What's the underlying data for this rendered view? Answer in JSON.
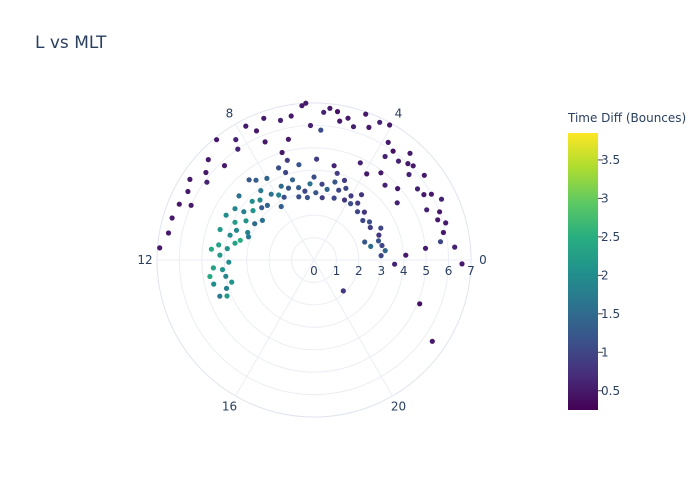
{
  "chart_data": {
    "type": "scatter",
    "subtype": "polar",
    "title": "L vs MLT",
    "radial_axis": {
      "range": [
        0,
        7
      ],
      "tick_labels": [
        "0",
        "1",
        "2",
        "3",
        "4",
        "5",
        "6",
        "7"
      ]
    },
    "angular_axis": {
      "unit": "MLT hours",
      "period": 24,
      "direction": "counterclockwise",
      "zero_at": "right",
      "tick_labels": [
        "0",
        "4",
        "8",
        "12",
        "16",
        "20"
      ]
    },
    "grid": true,
    "colorbar": {
      "title": "Time Diff (Bounces)",
      "colorscale": "Viridis",
      "range": [
        0.25,
        3.85
      ],
      "tick_labels": [
        "0.5",
        "1",
        "1.5",
        "2",
        "2.5",
        "3",
        "3.5"
      ],
      "tick_values": [
        0.5,
        1,
        1.5,
        2,
        2.5,
        3,
        3.5
      ]
    },
    "points": {
      "fields": [
        "mlt",
        "L",
        "time_diff"
      ],
      "values": [
        [
          5.75,
          6.6,
          0.6
        ],
        [
          5.8,
          5.8,
          1.1
        ],
        [
          6.2,
          7.0,
          0.5
        ],
        [
          7.1,
          5.0,
          0.5
        ],
        [
          5.4,
          6.7,
          0.4
        ],
        [
          5.1,
          6.5,
          0.5
        ],
        [
          4.9,
          6.2,
          0.6
        ],
        [
          4.7,
          6.9,
          0.5
        ],
        [
          4.3,
          6.8,
          0.6
        ],
        [
          4.05,
          6.9,
          0.5
        ],
        [
          3.85,
          6.2,
          0.5
        ],
        [
          3.6,
          6.0,
          0.4
        ],
        [
          3.3,
          5.8,
          0.6
        ],
        [
          3.05,
          6.0,
          0.5
        ],
        [
          2.8,
          5.7,
          0.6
        ],
        [
          2.5,
          6.2,
          0.5
        ],
        [
          2.05,
          5.7,
          0.5
        ],
        [
          1.7,
          6.3,
          0.6
        ],
        [
          1.4,
          6.0,
          0.5
        ],
        [
          1.05,
          6.1,
          0.5
        ],
        [
          0.55,
          5.7,
          1.0
        ],
        [
          0.35,
          6.3,
          0.6
        ],
        [
          5.3,
          6.3,
          0.5
        ],
        [
          4.5,
          6.4,
          0.5
        ],
        [
          3.7,
          5.6,
          0.6
        ],
        [
          3.2,
          6.4,
          0.5
        ],
        [
          2.9,
          6.1,
          0.5
        ],
        [
          2.3,
          5.6,
          0.6
        ],
        [
          1.95,
          6.0,
          0.5
        ],
        [
          1.6,
          5.5,
          0.6
        ],
        [
          1.2,
          5.8,
          0.5
        ],
        [
          0.8,
          5.9,
          0.5
        ],
        [
          5.6,
          6.8,
          0.5
        ],
        [
          6.3,
          6.9,
          0.5
        ],
        [
          6.6,
          6.5,
          0.5
        ],
        [
          6.9,
          6.4,
          0.6
        ],
        [
          7.3,
          6.7,
          0.5
        ],
        [
          7.6,
          6.3,
          0.5
        ],
        [
          7.8,
          6.7,
          0.5
        ],
        [
          8.2,
          6.4,
          0.6
        ],
        [
          8.6,
          6.9,
          0.5
        ],
        [
          9.1,
          6.5,
          0.5
        ],
        [
          9.4,
          6.2,
          0.5
        ],
        [
          9.8,
          6.6,
          0.5
        ],
        [
          10.1,
          6.4,
          0.5
        ],
        [
          10.5,
          6.5,
          0.5
        ],
        [
          10.9,
          6.6,
          0.5
        ],
        [
          11.3,
          6.6,
          0.5
        ],
        [
          11.7,
          6.9,
          0.5
        ],
        [
          9.6,
          5.9,
          0.6
        ],
        [
          8.9,
          5.8,
          0.5
        ],
        [
          8.3,
          6.0,
          0.6
        ],
        [
          7.5,
          5.7,
          0.5
        ],
        [
          6.8,
          5.5,
          0.5
        ],
        [
          6.1,
          6.0,
          0.6
        ],
        [
          10.4,
          6.0,
          0.5
        ],
        [
          4.6,
          3.8,
          0.9
        ],
        [
          4.4,
          3.5,
          1.0
        ],
        [
          4.2,
          3.0,
          0.8
        ],
        [
          5.0,
          3.6,
          1.2
        ],
        [
          5.3,
          3.2,
          1.4
        ],
        [
          5.6,
          3.4,
          1.0
        ],
        [
          5.9,
          3.0,
          1.2
        ],
        [
          6.2,
          3.4,
          1.6
        ],
        [
          6.5,
          3.1,
          1.0
        ],
        [
          6.8,
          3.3,
          1.3
        ],
        [
          7.0,
          3.7,
          1.4
        ],
        [
          7.3,
          3.4,
          1.2
        ],
        [
          7.6,
          3.6,
          1.5
        ],
        [
          7.9,
          3.3,
          1.8
        ],
        [
          8.2,
          3.5,
          1.6
        ],
        [
          8.5,
          3.9,
          1.7
        ],
        [
          8.8,
          3.6,
          1.9
        ],
        [
          9.1,
          3.8,
          2.0
        ],
        [
          9.4,
          3.5,
          2.1
        ],
        [
          9.7,
          3.8,
          1.8
        ],
        [
          10.0,
          3.5,
          2.1
        ],
        [
          10.3,
          3.9,
          2.2
        ],
        [
          10.6,
          3.7,
          1.9
        ],
        [
          10.9,
          3.9,
          2.0
        ],
        [
          11.2,
          3.6,
          2.3
        ],
        [
          11.5,
          3.9,
          2.1
        ],
        [
          11.8,
          4.2,
          2.2
        ],
        [
          12.1,
          3.8,
          2.0
        ],
        [
          12.4,
          4.1,
          2.1
        ],
        [
          12.7,
          4.0,
          1.9
        ],
        [
          13.0,
          3.8,
          2.1
        ],
        [
          13.2,
          4.1,
          1.8
        ],
        [
          11.0,
          3.4,
          2.5
        ],
        [
          10.5,
          3.2,
          1.8
        ],
        [
          9.9,
          3.1,
          1.5
        ],
        [
          8.7,
          3.2,
          1.4
        ],
        [
          7.7,
          3.1,
          1.1
        ],
        [
          6.4,
          2.8,
          1.2
        ],
        [
          5.5,
          2.8,
          0.9
        ],
        [
          4.8,
          2.9,
          1.0
        ],
        [
          4.0,
          3.3,
          0.9
        ],
        [
          3.8,
          3.0,
          1.1
        ],
        [
          3.5,
          3.2,
          0.9
        ],
        [
          3.2,
          2.9,
          1.0
        ],
        [
          2.9,
          3.1,
          0.8
        ],
        [
          2.6,
          2.8,
          1.0
        ],
        [
          2.3,
          3.0,
          1.1
        ],
        [
          2.0,
          2.9,
          0.9
        ],
        [
          1.7,
          3.3,
          1.0
        ],
        [
          1.4,
          3.1,
          0.8
        ],
        [
          1.1,
          3.0,
          1.2
        ],
        [
          0.8,
          3.1,
          1.0
        ],
        [
          0.5,
          3.2,
          1.4
        ],
        [
          0.25,
          3.0,
          1.0
        ],
        [
          23.8,
          3.6,
          0.6
        ],
        [
          0.9,
          2.6,
          1.5
        ],
        [
          1.3,
          2.4,
          1.2
        ],
        [
          8.0,
          4.2,
          1.4
        ],
        [
          7.2,
          4.1,
          1.0
        ],
        [
          6.6,
          4.3,
          1.2
        ],
        [
          5.9,
          4.5,
          0.9
        ],
        [
          5.2,
          4.3,
          0.6
        ],
        [
          4.3,
          4.8,
          0.6
        ],
        [
          3.9,
          4.5,
          0.5
        ],
        [
          3.5,
          4.9,
          0.5
        ],
        [
          3.1,
          4.6,
          0.6
        ],
        [
          2.7,
          4.9,
          0.5
        ],
        [
          2.3,
          4.5,
          0.6
        ],
        [
          9.3,
          4.4,
          1.6
        ],
        [
          10.8,
          4.4,
          2.2
        ],
        [
          11.6,
          4.6,
          2.4
        ],
        [
          12.3,
          4.5,
          2.3
        ],
        [
          12.9,
          4.6,
          2.0
        ],
        [
          13.4,
          4.5,
          1.7
        ],
        [
          0.4,
          5.0,
          0.5
        ],
        [
          0.2,
          4.1,
          0.5
        ],
        [
          22.5,
          5.1,
          0.4
        ],
        [
          21.7,
          6.4,
          0.5
        ],
        [
          23.9,
          6.6,
          0.5
        ],
        [
          20.9,
          1.9,
          0.8
        ],
        [
          13.5,
          4.2,
          2.2
        ],
        [
          12.6,
          4.7,
          2.4
        ],
        [
          9.0,
          3.3,
          1.3
        ],
        [
          6.0,
          3.7,
          1.1
        ],
        [
          5.0,
          4.0,
          0.9
        ],
        [
          7.4,
          4.4,
          1.1
        ],
        [
          8.4,
          4.4,
          1.3
        ],
        [
          9.8,
          4.2,
          1.9
        ],
        [
          11.4,
          4.3,
          2.3
        ],
        [
          10.2,
          4.4,
          2.0
        ],
        [
          6.9,
          2.9,
          1.1
        ],
        [
          4.7,
          3.3,
          1.0
        ],
        [
          3.6,
          3.6,
          0.8
        ],
        [
          8.1,
          2.8,
          1.3
        ],
        [
          9.5,
          2.9,
          1.6
        ],
        [
          10.7,
          3.1,
          1.7
        ],
        [
          7.0,
          4.6,
          0.9
        ],
        [
          8.6,
          4.6,
          1.2
        ]
      ]
    }
  }
}
